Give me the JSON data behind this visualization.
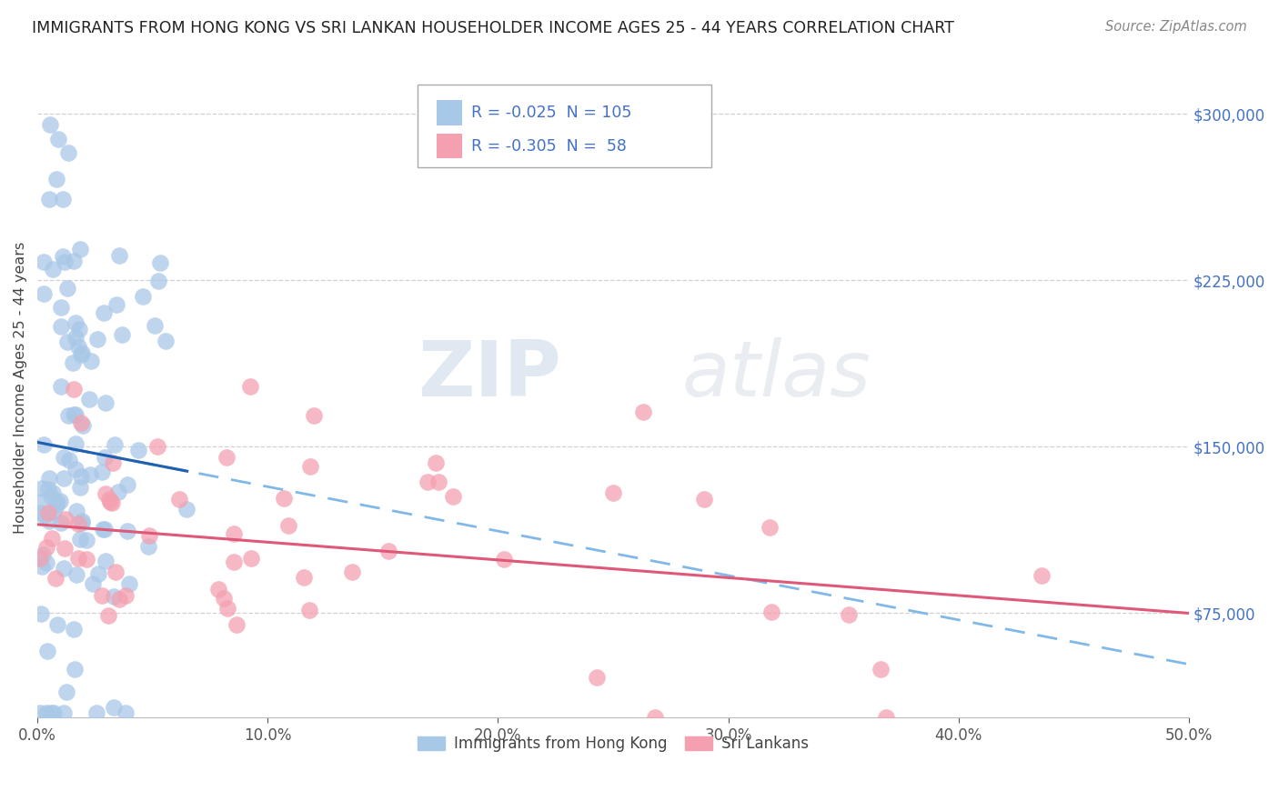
{
  "title": "IMMIGRANTS FROM HONG KONG VS SRI LANKAN HOUSEHOLDER INCOME AGES 25 - 44 YEARS CORRELATION CHART",
  "source": "Source: ZipAtlas.com",
  "ylabel": "Householder Income Ages 25 - 44 years",
  "legend_labels": [
    "Immigrants from Hong Kong",
    "Sri Lankans"
  ],
  "hk_r": "-0.025",
  "hk_n": "105",
  "sl_r": "-0.305",
  "sl_n": "58",
  "xmin": 0.0,
  "xmax": 0.5,
  "ymin": 28000,
  "ymax": 325000,
  "yticks": [
    75000,
    150000,
    225000,
    300000
  ],
  "ytick_labels": [
    "$75,000",
    "$150,000",
    "$225,000",
    "$300,000"
  ],
  "xticks": [
    0.0,
    0.1,
    0.2,
    0.3,
    0.4,
    0.5
  ],
  "xtick_labels": [
    "0.0%",
    "10.0%",
    "20.0%",
    "30.0%",
    "40.0%",
    "50.0%"
  ],
  "hk_color": "#a8c8e8",
  "sl_color": "#f4a0b0",
  "hk_line_color": "#2060b0",
  "hk_dash_color": "#80b8e8",
  "sl_line_color": "#e05878",
  "watermark_zip": "ZIP",
  "watermark_atlas": "atlas",
  "background_color": "#ffffff",
  "grid_color": "#cccccc",
  "ytick_color": "#4472c4",
  "xtick_color": "#555555"
}
